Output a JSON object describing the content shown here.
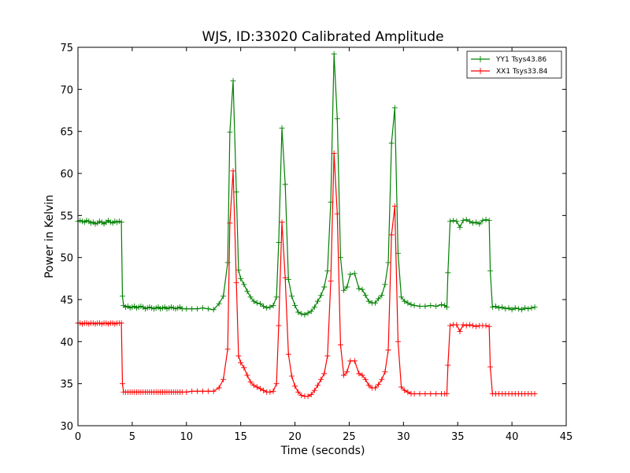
{
  "chart_data": {
    "type": "line",
    "title": "WJS, ID:33020 Calibrated Amplitude",
    "xlabel": "Time (seconds)",
    "ylabel": "Power in Kelvin",
    "xlim": [
      0,
      45
    ],
    "ylim": [
      30,
      75
    ],
    "xticks": [
      0,
      5,
      10,
      15,
      20,
      25,
      30,
      35,
      40,
      45
    ],
    "yticks": [
      30,
      35,
      40,
      45,
      50,
      55,
      60,
      65,
      70,
      75
    ],
    "grid": false,
    "legend_position": "top-right",
    "marker": "+",
    "series": [
      {
        "name": "YY1 Tsys43.86",
        "color": "#008000",
        "points": [
          [
            0.0,
            54.3
          ],
          [
            0.2,
            54.4
          ],
          [
            0.4,
            54.3
          ],
          [
            0.6,
            54.2
          ],
          [
            0.8,
            54.4
          ],
          [
            1.0,
            54.3
          ],
          [
            1.2,
            54.1
          ],
          [
            1.4,
            54.2
          ],
          [
            1.6,
            54.0
          ],
          [
            1.8,
            54.1
          ],
          [
            2.0,
            54.3
          ],
          [
            2.2,
            54.2
          ],
          [
            2.4,
            54.0
          ],
          [
            2.6,
            54.2
          ],
          [
            2.8,
            54.4
          ],
          [
            3.0,
            54.2
          ],
          [
            3.2,
            54.1
          ],
          [
            3.4,
            54.3
          ],
          [
            3.6,
            54.2
          ],
          [
            3.8,
            54.3
          ],
          [
            4.0,
            54.2
          ],
          [
            4.1,
            45.4
          ],
          [
            4.2,
            44.3
          ],
          [
            4.4,
            44.1
          ],
          [
            4.6,
            44.2
          ],
          [
            4.8,
            44.0
          ],
          [
            5.0,
            44.1
          ],
          [
            5.2,
            44.2
          ],
          [
            5.4,
            44.0
          ],
          [
            5.6,
            44.1
          ],
          [
            5.8,
            44.2
          ],
          [
            6.0,
            44.1
          ],
          [
            6.2,
            43.9
          ],
          [
            6.4,
            44.0
          ],
          [
            6.6,
            44.1
          ],
          [
            6.8,
            44.0
          ],
          [
            7.0,
            43.9
          ],
          [
            7.2,
            44.0
          ],
          [
            7.4,
            44.1
          ],
          [
            7.6,
            43.9
          ],
          [
            7.8,
            44.0
          ],
          [
            8.0,
            44.1
          ],
          [
            8.2,
            43.9
          ],
          [
            8.4,
            44.0
          ],
          [
            8.6,
            44.1
          ],
          [
            8.8,
            44.0
          ],
          [
            9.0,
            43.9
          ],
          [
            9.2,
            44.0
          ],
          [
            9.4,
            44.1
          ],
          [
            9.6,
            43.9
          ],
          [
            10.0,
            43.9
          ],
          [
            10.5,
            43.9
          ],
          [
            11.0,
            43.9
          ],
          [
            11.5,
            44.0
          ],
          [
            12.0,
            43.9
          ],
          [
            12.5,
            43.8
          ],
          [
            13.0,
            44.5
          ],
          [
            13.4,
            45.4
          ],
          [
            13.8,
            49.4
          ],
          [
            14.0,
            64.9
          ],
          [
            14.3,
            71.0
          ],
          [
            14.6,
            57.8
          ],
          [
            14.8,
            48.5
          ],
          [
            15.0,
            47.5
          ],
          [
            15.3,
            46.8
          ],
          [
            15.6,
            46.0
          ],
          [
            15.9,
            45.3
          ],
          [
            16.2,
            44.8
          ],
          [
            16.5,
            44.6
          ],
          [
            16.8,
            44.5
          ],
          [
            17.1,
            44.2
          ],
          [
            17.4,
            44.0
          ],
          [
            17.7,
            44.1
          ],
          [
            18.0,
            44.3
          ],
          [
            18.3,
            45.3
          ],
          [
            18.5,
            51.8
          ],
          [
            18.8,
            65.4
          ],
          [
            19.1,
            58.7
          ],
          [
            19.4,
            47.4
          ],
          [
            19.7,
            45.4
          ],
          [
            20.0,
            44.3
          ],
          [
            20.3,
            43.5
          ],
          [
            20.6,
            43.3
          ],
          [
            20.9,
            43.2
          ],
          [
            21.2,
            43.4
          ],
          [
            21.5,
            43.6
          ],
          [
            21.8,
            44.1
          ],
          [
            22.1,
            44.8
          ],
          [
            22.4,
            45.5
          ],
          [
            22.7,
            46.5
          ],
          [
            23.0,
            48.4
          ],
          [
            23.3,
            56.6
          ],
          [
            23.6,
            74.2
          ],
          [
            23.9,
            66.5
          ],
          [
            24.2,
            50.0
          ],
          [
            24.5,
            46.1
          ],
          [
            24.8,
            46.5
          ],
          [
            25.1,
            48.0
          ],
          [
            25.5,
            48.1
          ],
          [
            25.9,
            46.3
          ],
          [
            26.2,
            46.2
          ],
          [
            26.5,
            45.5
          ],
          [
            26.8,
            44.8
          ],
          [
            27.1,
            44.6
          ],
          [
            27.4,
            44.6
          ],
          [
            27.7,
            45.1
          ],
          [
            28.0,
            45.5
          ],
          [
            28.3,
            46.8
          ],
          [
            28.6,
            49.4
          ],
          [
            28.9,
            63.6
          ],
          [
            29.2,
            67.8
          ],
          [
            29.5,
            50.5
          ],
          [
            29.8,
            45.3
          ],
          [
            30.1,
            44.8
          ],
          [
            30.4,
            44.6
          ],
          [
            30.7,
            44.4
          ],
          [
            31.0,
            44.3
          ],
          [
            31.5,
            44.2
          ],
          [
            32.0,
            44.2
          ],
          [
            32.5,
            44.3
          ],
          [
            33.0,
            44.2
          ],
          [
            33.5,
            44.4
          ],
          [
            33.8,
            44.3
          ],
          [
            34.0,
            44.1
          ],
          [
            34.1,
            48.2
          ],
          [
            34.3,
            54.3
          ],
          [
            34.6,
            54.4
          ],
          [
            34.9,
            54.3
          ],
          [
            35.2,
            53.6
          ],
          [
            35.5,
            54.4
          ],
          [
            35.8,
            54.5
          ],
          [
            36.1,
            54.3
          ],
          [
            36.4,
            54.1
          ],
          [
            36.7,
            54.2
          ],
          [
            37.0,
            54.0
          ],
          [
            37.3,
            54.4
          ],
          [
            37.6,
            54.5
          ],
          [
            37.9,
            54.4
          ],
          [
            38.0,
            48.4
          ],
          [
            38.2,
            44.1
          ],
          [
            38.5,
            44.2
          ],
          [
            38.8,
            44.0
          ],
          [
            39.1,
            44.1
          ],
          [
            39.4,
            43.9
          ],
          [
            39.7,
            44.0
          ],
          [
            40.0,
            43.8
          ],
          [
            40.3,
            44.0
          ],
          [
            40.6,
            43.9
          ],
          [
            40.9,
            43.8
          ],
          [
            41.2,
            44.0
          ],
          [
            41.5,
            43.9
          ],
          [
            41.8,
            44.0
          ],
          [
            42.1,
            44.1
          ]
        ]
      },
      {
        "name": "XX1 Tsys33.84",
        "color": "#ff0000",
        "points": [
          [
            0.0,
            42.2
          ],
          [
            0.2,
            42.2
          ],
          [
            0.4,
            42.1
          ],
          [
            0.6,
            42.2
          ],
          [
            0.8,
            42.2
          ],
          [
            1.0,
            42.1
          ],
          [
            1.2,
            42.2
          ],
          [
            1.4,
            42.2
          ],
          [
            1.6,
            42.1
          ],
          [
            1.8,
            42.2
          ],
          [
            2.0,
            42.2
          ],
          [
            2.2,
            42.1
          ],
          [
            2.4,
            42.2
          ],
          [
            2.6,
            42.2
          ],
          [
            2.8,
            42.1
          ],
          [
            3.0,
            42.2
          ],
          [
            3.2,
            42.2
          ],
          [
            3.4,
            42.1
          ],
          [
            3.6,
            42.2
          ],
          [
            3.8,
            42.2
          ],
          [
            4.0,
            42.2
          ],
          [
            4.1,
            35.0
          ],
          [
            4.2,
            34.0
          ],
          [
            4.4,
            34.0
          ],
          [
            4.6,
            34.0
          ],
          [
            4.8,
            34.0
          ],
          [
            5.0,
            34.0
          ],
          [
            5.2,
            34.0
          ],
          [
            5.4,
            34.0
          ],
          [
            5.6,
            34.0
          ],
          [
            5.8,
            34.0
          ],
          [
            6.0,
            34.0
          ],
          [
            6.2,
            34.0
          ],
          [
            6.4,
            34.0
          ],
          [
            6.6,
            34.0
          ],
          [
            6.8,
            34.0
          ],
          [
            7.0,
            34.0
          ],
          [
            7.2,
            34.0
          ],
          [
            7.4,
            34.0
          ],
          [
            7.6,
            34.0
          ],
          [
            7.8,
            34.0
          ],
          [
            8.0,
            34.0
          ],
          [
            8.2,
            34.0
          ],
          [
            8.4,
            34.0
          ],
          [
            8.6,
            34.0
          ],
          [
            8.8,
            34.0
          ],
          [
            9.0,
            34.0
          ],
          [
            9.2,
            34.0
          ],
          [
            9.4,
            34.0
          ],
          [
            9.6,
            34.0
          ],
          [
            10.0,
            34.0
          ],
          [
            10.5,
            34.1
          ],
          [
            11.0,
            34.1
          ],
          [
            11.5,
            34.1
          ],
          [
            12.0,
            34.1
          ],
          [
            12.5,
            34.1
          ],
          [
            13.0,
            34.5
          ],
          [
            13.4,
            35.5
          ],
          [
            13.8,
            39.1
          ],
          [
            14.0,
            54.1
          ],
          [
            14.3,
            60.3
          ],
          [
            14.6,
            47.0
          ],
          [
            14.8,
            38.3
          ],
          [
            15.0,
            37.5
          ],
          [
            15.3,
            36.9
          ],
          [
            15.6,
            36.0
          ],
          [
            15.9,
            35.2
          ],
          [
            16.2,
            34.8
          ],
          [
            16.5,
            34.6
          ],
          [
            16.8,
            34.4
          ],
          [
            17.1,
            34.2
          ],
          [
            17.4,
            34.0
          ],
          [
            17.7,
            34.0
          ],
          [
            18.0,
            34.1
          ],
          [
            18.3,
            35.0
          ],
          [
            18.5,
            41.9
          ],
          [
            18.8,
            54.2
          ],
          [
            19.1,
            47.6
          ],
          [
            19.4,
            38.5
          ],
          [
            19.7,
            35.9
          ],
          [
            20.0,
            34.7
          ],
          [
            20.3,
            34.0
          ],
          [
            20.6,
            33.6
          ],
          [
            20.9,
            33.5
          ],
          [
            21.2,
            33.5
          ],
          [
            21.5,
            33.7
          ],
          [
            21.8,
            34.2
          ],
          [
            22.1,
            34.8
          ],
          [
            22.4,
            35.5
          ],
          [
            22.7,
            36.2
          ],
          [
            23.0,
            38.3
          ],
          [
            23.3,
            47.2
          ],
          [
            23.6,
            62.4
          ],
          [
            23.9,
            55.2
          ],
          [
            24.2,
            39.6
          ],
          [
            24.5,
            36.0
          ],
          [
            24.8,
            36.4
          ],
          [
            25.1,
            37.7
          ],
          [
            25.5,
            37.7
          ],
          [
            25.9,
            36.2
          ],
          [
            26.2,
            36.0
          ],
          [
            26.5,
            35.5
          ],
          [
            26.8,
            34.8
          ],
          [
            27.1,
            34.5
          ],
          [
            27.4,
            34.5
          ],
          [
            27.7,
            34.9
          ],
          [
            28.0,
            35.5
          ],
          [
            28.3,
            36.4
          ],
          [
            28.6,
            39.0
          ],
          [
            28.9,
            52.7
          ],
          [
            29.2,
            56.1
          ],
          [
            29.5,
            40.0
          ],
          [
            29.8,
            34.6
          ],
          [
            30.1,
            34.2
          ],
          [
            30.4,
            34.0
          ],
          [
            30.7,
            33.8
          ],
          [
            31.0,
            33.8
          ],
          [
            31.5,
            33.8
          ],
          [
            32.0,
            33.8
          ],
          [
            32.5,
            33.8
          ],
          [
            33.0,
            33.8
          ],
          [
            33.5,
            33.8
          ],
          [
            33.8,
            33.8
          ],
          [
            34.0,
            33.8
          ],
          [
            34.1,
            37.2
          ],
          [
            34.3,
            41.9
          ],
          [
            34.6,
            42.0
          ],
          [
            34.9,
            42.0
          ],
          [
            35.2,
            41.2
          ],
          [
            35.5,
            42.0
          ],
          [
            35.8,
            41.9
          ],
          [
            36.1,
            42.0
          ],
          [
            36.4,
            41.9
          ],
          [
            36.7,
            41.8
          ],
          [
            37.0,
            41.9
          ],
          [
            37.3,
            41.9
          ],
          [
            37.6,
            41.9
          ],
          [
            37.9,
            41.8
          ],
          [
            38.0,
            37.0
          ],
          [
            38.2,
            33.8
          ],
          [
            38.5,
            33.8
          ],
          [
            38.8,
            33.8
          ],
          [
            39.1,
            33.8
          ],
          [
            39.4,
            33.8
          ],
          [
            39.7,
            33.8
          ],
          [
            40.0,
            33.8
          ],
          [
            40.3,
            33.8
          ],
          [
            40.6,
            33.8
          ],
          [
            40.9,
            33.8
          ],
          [
            41.2,
            33.8
          ],
          [
            41.5,
            33.8
          ],
          [
            41.8,
            33.8
          ],
          [
            42.1,
            33.8
          ]
        ]
      }
    ]
  }
}
